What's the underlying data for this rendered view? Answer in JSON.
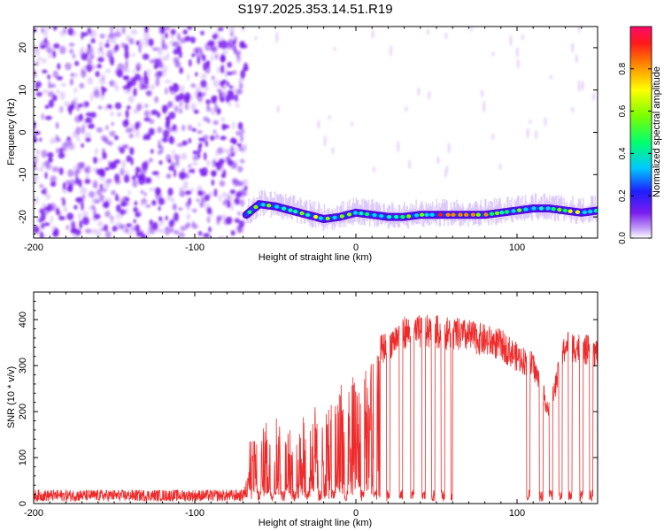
{
  "figure_title": "S197.2025.353.14.51.R19",
  "colors": {
    "snr_line": "#ee2a2a",
    "ridge_low": "#4b00e0",
    "noise": "#7a1cf0",
    "background": "#ffffff"
  },
  "chart_data": [
    {
      "type": "heatmap",
      "name": "spectrogram",
      "xlabel": "Height of straight line (km)",
      "ylabel": "Frequency (Hz)",
      "xlim": [
        -200,
        150
      ],
      "ylim": [
        -25,
        25
      ],
      "x_ticks": [
        -200,
        -100,
        0,
        100
      ],
      "y_ticks": [
        -20,
        -10,
        0,
        10,
        20
      ],
      "noise_region_x": [
        -200,
        -68
      ],
      "signal_start_x": -68,
      "ridge": {
        "x": [
          -68,
          -60,
          -50,
          -40,
          -30,
          -20,
          -10,
          0,
          10,
          20,
          30,
          40,
          50,
          60,
          70,
          80,
          90,
          100,
          110,
          120,
          130,
          140,
          150
        ],
        "y": [
          -19.5,
          -17,
          -17.5,
          -18.5,
          -19.5,
          -20.5,
          -20,
          -19,
          -19.5,
          -20,
          -20,
          -19.5,
          -19.5,
          -19.5,
          -19.5,
          -19.5,
          -19,
          -18.5,
          -18,
          -18,
          -18.5,
          -19,
          -18.5
        ]
      },
      "colorbar": {
        "label": "Normalized spectral amplitude",
        "range": [
          0,
          1
        ],
        "ticks": [
          "0.0",
          "0.2",
          "0.4",
          "0.6",
          "0.8"
        ]
      }
    },
    {
      "type": "line",
      "name": "snr",
      "xlabel": "Height of straight line (km)",
      "ylabel": "SNR (10 * v/v)",
      "xlim": [
        -200,
        150
      ],
      "ylim": [
        0,
        460
      ],
      "x_ticks": [
        -200,
        -100,
        0,
        100
      ],
      "y_ticks": [
        0,
        100,
        200,
        300,
        400
      ],
      "baseline_noise": [
        5,
        30
      ],
      "envelope": {
        "x": [
          -200,
          -70,
          -66,
          -60,
          -50,
          -40,
          -30,
          -20,
          -10,
          0,
          10,
          20,
          30,
          40,
          50,
          60,
          70,
          80,
          90,
          100,
          110,
          120,
          130,
          140,
          150
        ],
        "y": [
          20,
          20,
          150,
          170,
          230,
          180,
          250,
          230,
          290,
          330,
          350,
          380,
          410,
          410,
          410,
          405,
          400,
          390,
          380,
          350,
          330,
          220,
          380,
          370,
          360
        ]
      },
      "dropouts_x": [
        -60,
        -52,
        -45,
        -38,
        -30,
        -22,
        -14,
        -6,
        4,
        12,
        20,
        28,
        35,
        42,
        48,
        54,
        60,
        107,
        115,
        121,
        127,
        133,
        140,
        146
      ]
    }
  ]
}
